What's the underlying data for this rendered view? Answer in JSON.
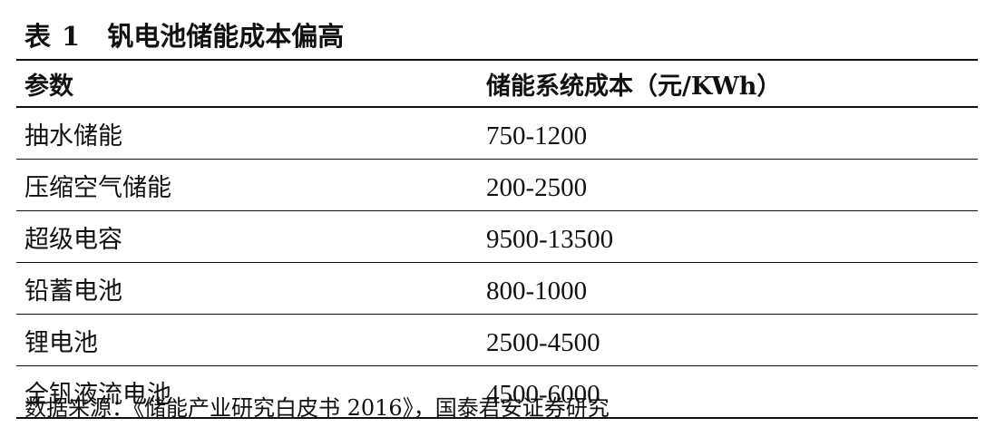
{
  "title": {
    "label": "表",
    "number": "1",
    "name": "钒电池储能成本偏高"
  },
  "table": {
    "headers": [
      "参数",
      "储能系统成本（元/KWh）"
    ],
    "rows": [
      {
        "name": "抽水储能",
        "value": "750-1200"
      },
      {
        "name": "压缩空气储能",
        "value": "200-2500"
      },
      {
        "name": "超级电容",
        "value": "9500-13500"
      },
      {
        "name": "铅蓄电池",
        "value": "800-1000"
      },
      {
        "name": "锂电池",
        "value": "2500-4500"
      },
      {
        "name": "全钒液流电池",
        "value": "4500-6000"
      }
    ]
  },
  "source": "数据来源：《储能产业研究白皮书 2016》，国泰君安证券研究"
}
